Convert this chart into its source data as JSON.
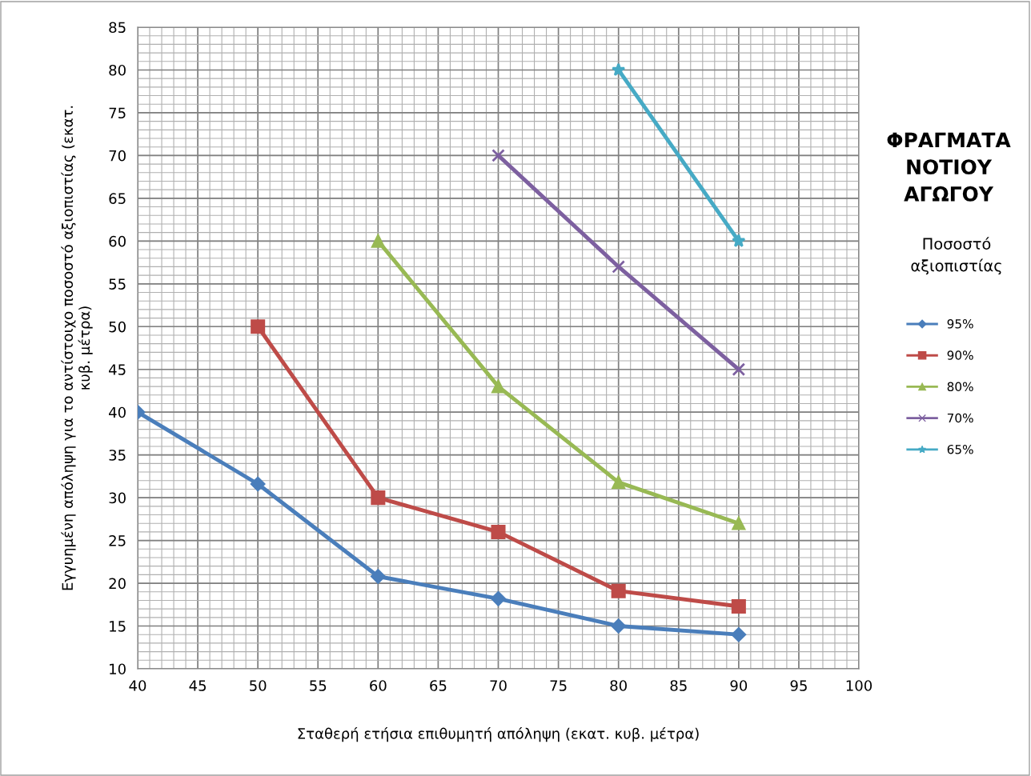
{
  "chart_data": {
    "type": "line",
    "title": "ΦΡΑΓΜΑΤΑ\nΝΟΤΙΟΥ\nΑΓΩΓΟΥ",
    "legend_title": "Ποσοστό\nαξιοπιστίας",
    "xlabel": "Σταθερή ετήσια επιθυμητή απόληψη (εκατ. κυβ. μέτρα)",
    "ylabel": "Εγγυημένη απόληψη για το αντίστοιχο ποσοστό αξιοπιστίας (εκατ.\nκυβ. μέτρα)",
    "xlim": [
      40,
      100
    ],
    "xticks": [
      40,
      45,
      50,
      55,
      60,
      65,
      70,
      75,
      80,
      85,
      90,
      95,
      100
    ],
    "ylim": [
      10,
      85
    ],
    "yticks": [
      10,
      15,
      20,
      25,
      30,
      35,
      40,
      45,
      50,
      55,
      60,
      65,
      70,
      75,
      80,
      85
    ],
    "grid": true,
    "legend": "right",
    "line_style": "solid",
    "series": [
      {
        "name": "95%",
        "color": "#4a7ebb",
        "marker": "diamond",
        "x": [
          40,
          50,
          60,
          70,
          80,
          90
        ],
        "values": [
          40,
          31.6,
          20.8,
          18.2,
          15,
          14
        ]
      },
      {
        "name": "90%",
        "color": "#be4b48",
        "marker": "square",
        "x": [
          50,
          60,
          70,
          80,
          90
        ],
        "values": [
          50,
          30,
          26,
          19.1,
          17.3
        ]
      },
      {
        "name": "80%",
        "color": "#98b954",
        "marker": "triangle",
        "x": [
          60,
          70,
          80,
          90
        ],
        "values": [
          60,
          43,
          31.8,
          27
        ]
      },
      {
        "name": "70%",
        "color": "#7d60a0",
        "marker": "cross",
        "x": [
          70,
          80,
          90
        ],
        "values": [
          70,
          57,
          45
        ]
      },
      {
        "name": "65%",
        "color": "#46aac5",
        "marker": "star",
        "x": [
          80,
          90
        ],
        "values": [
          80,
          60
        ]
      }
    ]
  }
}
